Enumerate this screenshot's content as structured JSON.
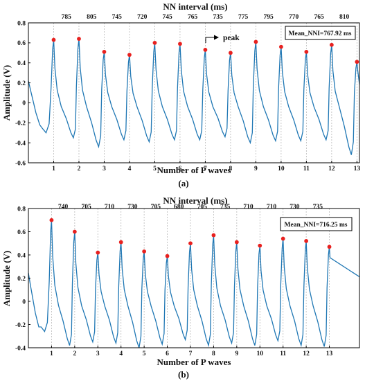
{
  "colors": {
    "signal": "#1f77b4",
    "peak": "#e8211f",
    "guide": "#b9b9b9",
    "axis": "#000000"
  },
  "chart_data": [
    {
      "type": "line",
      "caption": "(a)",
      "title": "NN interval (ms)",
      "xlabel": "Number of P waves",
      "ylabel": "Amplitude (V)",
      "xlim": [
        0,
        13.1
      ],
      "ylim": [
        -0.6,
        0.8
      ],
      "x_ticks": [
        "1",
        "2",
        "3",
        "4",
        "5",
        "6",
        "7",
        "8",
        "9",
        "10",
        "11",
        "12",
        "13"
      ],
      "y_ticks": [
        "0.8",
        "0.6",
        "0.4",
        "0.2",
        "0",
        "-0.2",
        "-0.4",
        "-0.6"
      ],
      "nn_intervals": [
        "785",
        "805",
        "745",
        "720",
        "745",
        "765",
        "735",
        "775",
        "795",
        "770",
        "765",
        "810"
      ],
      "mean_label": "Mean_NNI=767.92 ms",
      "annotation": "peak",
      "grid": "vertical dashed at peaks",
      "series": [
        {
          "peaks_x": [
            1,
            2,
            3,
            4,
            5,
            6,
            7,
            8,
            9,
            10,
            11,
            12,
            13
          ],
          "peaks_y": [
            0.63,
            0.64,
            0.51,
            0.48,
            0.6,
            0.59,
            0.53,
            0.5,
            0.61,
            0.56,
            0.51,
            0.58,
            0.41
          ],
          "troughs_y": [
            -0.3,
            -0.35,
            -0.44,
            -0.37,
            -0.39,
            -0.37,
            -0.37,
            -0.34,
            -0.4,
            -0.38,
            -0.38,
            -0.37,
            -0.52
          ]
        }
      ]
    },
    {
      "type": "line",
      "caption": "(b)",
      "title": "NN interval (ms)",
      "xlabel": "Number of P waves",
      "ylabel": "Amplitude (V)",
      "xlim": [
        0,
        14.3
      ],
      "ylim": [
        -0.4,
        0.8
      ],
      "x_ticks": [
        "1",
        "2",
        "3",
        "4",
        "5",
        "6",
        "7",
        "8",
        "9",
        "10",
        "11",
        "12",
        "13"
      ],
      "y_ticks": [
        "0.8",
        "0.6",
        "0.4",
        "0.2",
        "0",
        "-0.2",
        "-0.4"
      ],
      "nn_intervals": [
        "740",
        "705",
        "710",
        "730",
        "705",
        "680",
        "705",
        "735",
        "710",
        "710",
        "730",
        "735"
      ],
      "mean_label": "Mean_NNI=716.25 ms",
      "grid": "vertical dashed at peaks",
      "series": [
        {
          "peaks_x": [
            1,
            2,
            3,
            4,
            5,
            6,
            7,
            8,
            9,
            10,
            11,
            12,
            13
          ],
          "peaks_y": [
            0.7,
            0.6,
            0.42,
            0.51,
            0.43,
            0.39,
            0.5,
            0.57,
            0.51,
            0.48,
            0.54,
            0.52,
            0.47
          ],
          "troughs_y": [
            -0.26,
            -0.38,
            -0.35,
            -0.36,
            -0.4,
            -0.37,
            -0.33,
            -0.38,
            -0.36,
            -0.38,
            -0.34,
            -0.38,
            -0.39
          ]
        }
      ]
    }
  ]
}
